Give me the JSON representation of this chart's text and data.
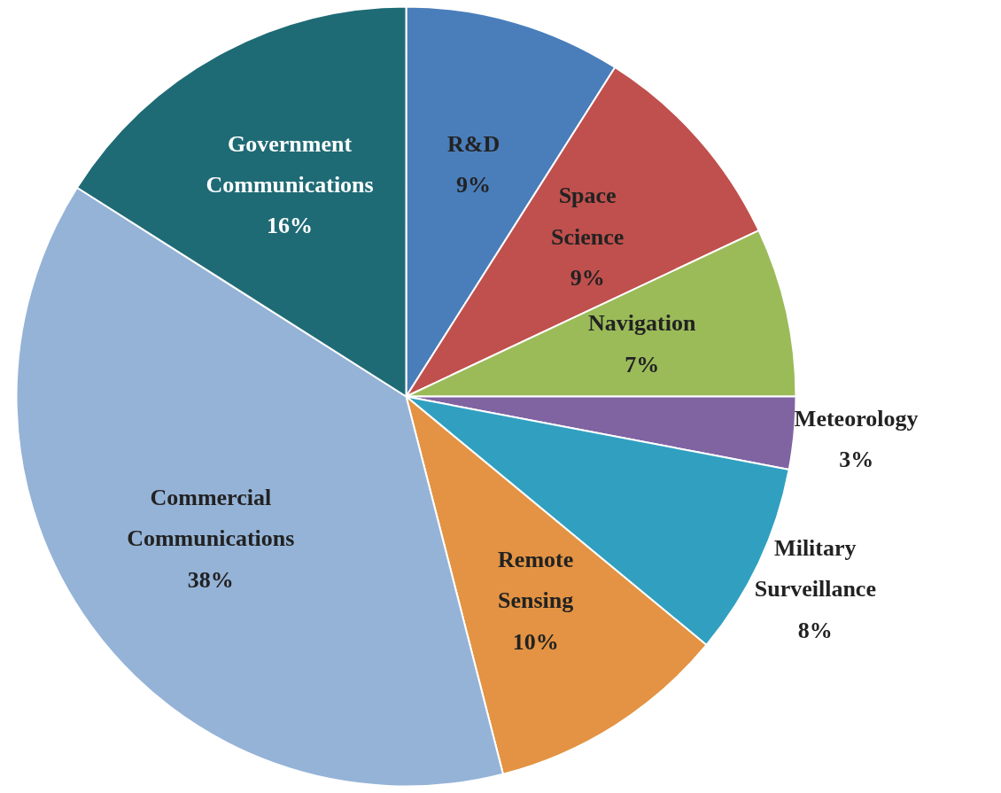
{
  "chart_data": {
    "type": "pie",
    "categories": [
      "R&D",
      "Space Science",
      "Navigation",
      "Meteorology",
      "Military Surveillance",
      "Remote Sensing",
      "Commercial Communications",
      "Government Communications"
    ],
    "values": [
      9,
      9,
      7,
      3,
      8,
      10,
      38,
      16
    ],
    "colors": [
      "#4a7ebb",
      "#c0504d",
      "#9bbb59",
      "#8064a2",
      "#31a0c0",
      "#e39343",
      "#95b3d7",
      "#1f6b75"
    ],
    "value_labels": [
      "9%",
      "9%",
      "7%",
      "3%",
      "8%",
      "10%",
      "38%",
      "16%"
    ]
  }
}
